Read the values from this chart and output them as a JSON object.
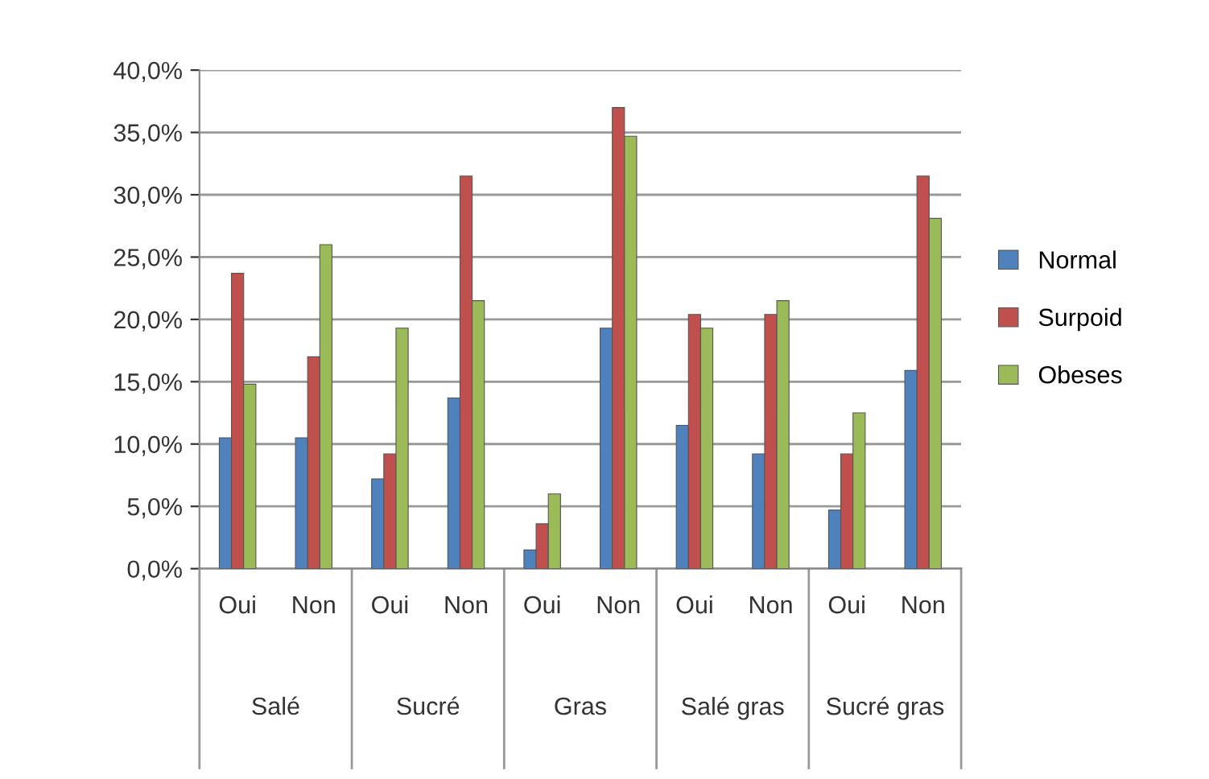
{
  "chart_data": {
    "type": "bar",
    "categories": [
      "Oui",
      "Non",
      "Oui",
      "Non",
      "Oui",
      "Non",
      "Oui",
      "Non",
      "Oui",
      "Non"
    ],
    "annotations": [
      "Salé",
      "Sucré",
      "Gras",
      "Salé gras",
      "Sucré gras"
    ],
    "series": [
      {
        "name": "Normal",
        "color": "#4f81bd",
        "values": [
          10.5,
          10.5,
          7.2,
          13.7,
          1.5,
          19.3,
          11.5,
          9.2,
          4.7,
          15.9
        ]
      },
      {
        "name": "Surpoid",
        "color": "#c0504d",
        "values": [
          23.7,
          17.0,
          9.2,
          31.5,
          3.6,
          37.0,
          20.4,
          20.4,
          9.2,
          31.5
        ]
      },
      {
        "name": "Obeses",
        "color": "#9bbb59",
        "values": [
          14.8,
          26.0,
          19.3,
          21.5,
          6.0,
          34.7,
          19.3,
          21.5,
          12.5,
          28.1
        ]
      }
    ],
    "ylim": [
      0,
      40
    ],
    "yticks": [
      {
        "value": 0,
        "label": "0,0%"
      },
      {
        "value": 5,
        "label": "5,0%"
      },
      {
        "value": 10,
        "label": "10,0%"
      },
      {
        "value": 15,
        "label": "15,0%"
      },
      {
        "value": 20,
        "label": "20,0%"
      },
      {
        "value": 25,
        "label": "25,0%"
      },
      {
        "value": 30,
        "label": "30,0%"
      },
      {
        "value": 35,
        "label": "35,0%"
      },
      {
        "value": 40,
        "label": "40,0%"
      }
    ],
    "grid": "y",
    "legend": "right"
  }
}
